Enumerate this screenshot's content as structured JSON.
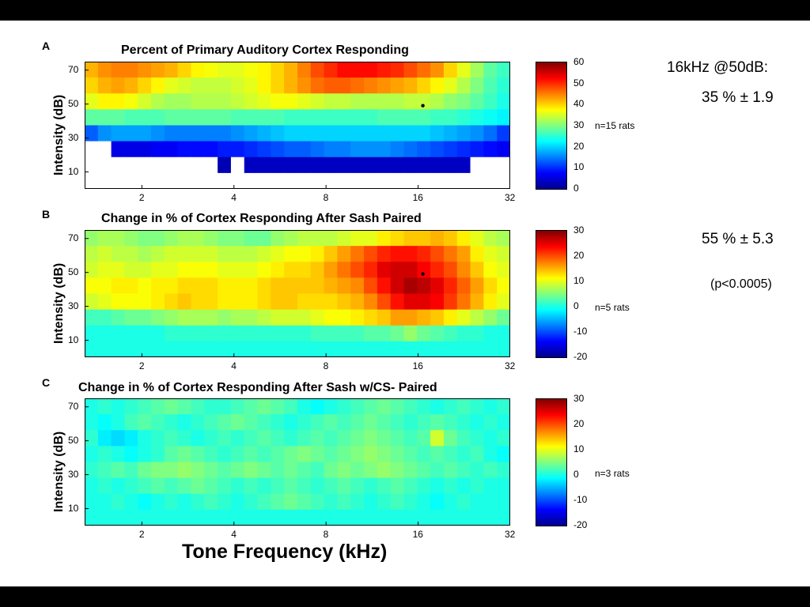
{
  "chart_data": [
    {
      "type": "heatmap",
      "panel": "A",
      "title": "Percent of Primary Auditory Cortex Responding",
      "ylabel": "Intensity (dB)",
      "xlabel": "Tone Frequency (kHz)",
      "x_ticks": [
        "2",
        "4",
        "8",
        "16",
        "32"
      ],
      "y_ticks": [
        "70",
        "50",
        "30",
        "10"
      ],
      "x_range_khz": [
        1.3,
        32
      ],
      "y_range_db": [
        0,
        75
      ],
      "colorbar_ticks": [
        "60",
        "50",
        "40",
        "30",
        "20",
        "10",
        "0"
      ],
      "color_range": [
        0,
        60
      ],
      "n_label": "n=15 rats",
      "rows_db": [
        70,
        60,
        50,
        40,
        30,
        20,
        10,
        0
      ],
      "rows": [
        {
          "db": 70,
          "values": [
            42,
            44,
            45,
            45,
            44,
            43,
            42,
            40,
            38,
            37,
            36,
            36,
            37,
            38,
            40,
            42,
            45,
            48,
            50,
            52,
            52,
            52,
            51,
            50,
            48,
            46,
            44,
            40,
            36,
            32,
            28,
            26
          ]
        },
        {
          "db": 60,
          "values": [
            40,
            42,
            43,
            42,
            40,
            38,
            36,
            35,
            34,
            34,
            34,
            35,
            36,
            38,
            40,
            42,
            44,
            46,
            47,
            47,
            46,
            45,
            44,
            43,
            42,
            40,
            38,
            36,
            33,
            30,
            27,
            25
          ]
        },
        {
          "db": 50,
          "values": [
            36,
            38,
            38,
            37,
            35,
            33,
            32,
            32,
            33,
            33,
            33,
            34,
            35,
            36,
            37,
            37,
            36,
            35,
            34,
            34,
            33,
            33,
            33,
            33,
            34,
            34,
            33,
            31,
            30,
            28,
            26,
            24
          ]
        },
        {
          "db": 40,
          "values": [
            28,
            28,
            28,
            27,
            27,
            27,
            28,
            28,
            28,
            28,
            28,
            27,
            27,
            27,
            27,
            26,
            26,
            26,
            26,
            26,
            26,
            26,
            27,
            27,
            27,
            27,
            26,
            26,
            25,
            24,
            23,
            22
          ]
        },
        {
          "db": 30,
          "values": [
            13,
            16,
            17,
            17,
            17,
            16,
            15,
            15,
            15,
            15,
            15,
            16,
            17,
            18,
            19,
            20,
            20,
            20,
            20,
            20,
            20,
            20,
            20,
            20,
            20,
            20,
            19,
            18,
            17,
            16,
            14,
            11
          ]
        },
        {
          "db": 20,
          "values": [
            null,
            null,
            6,
            6,
            6,
            7,
            7,
            8,
            8,
            8,
            9,
            9,
            10,
            11,
            12,
            13,
            13,
            14,
            15,
            15,
            16,
            16,
            16,
            15,
            14,
            13,
            12,
            11,
            10,
            9,
            8,
            7
          ]
        },
        {
          "db": 10,
          "values": [
            null,
            null,
            null,
            null,
            null,
            null,
            null,
            null,
            null,
            null,
            3,
            null,
            4,
            4,
            4,
            4,
            4,
            4,
            4,
            4,
            4,
            4,
            4,
            4,
            4,
            4,
            4,
            4,
            4,
            null,
            null,
            null
          ]
        },
        {
          "db": 0,
          "values": [
            null,
            null,
            null,
            null,
            null,
            null,
            null,
            null,
            null,
            null,
            null,
            null,
            null,
            null,
            null,
            null,
            null,
            null,
            null,
            null,
            null,
            null,
            null,
            null,
            null,
            null,
            null,
            null,
            null,
            null,
            null,
            null
          ]
        }
      ],
      "marker": {
        "khz": 16,
        "db": 50
      }
    },
    {
      "type": "heatmap",
      "panel": "B",
      "title": "Change in % of Cortex Responding After Sash Paired",
      "ylabel": "Intensity (dB)",
      "x_ticks": [
        "2",
        "4",
        "8",
        "16",
        "32"
      ],
      "y_ticks": [
        "70",
        "50",
        "30",
        "10"
      ],
      "x_range_khz": [
        1.3,
        32
      ],
      "y_range_db": [
        0,
        75
      ],
      "colorbar_ticks": [
        "30",
        "20",
        "10",
        "0",
        "-10",
        "-20"
      ],
      "color_range": [
        -20,
        30
      ],
      "n_label": "n=5 rats",
      "rows_db": [
        70,
        60,
        50,
        40,
        30,
        20,
        10,
        0
      ],
      "rows": [
        {
          "db": 70,
          "values": [
            6,
            7,
            7,
            6,
            5,
            5,
            6,
            7,
            7,
            6,
            5,
            5,
            4,
            4,
            6,
            7,
            8,
            8,
            8,
            9,
            10,
            10,
            12,
            13,
            14,
            14,
            15,
            14,
            12,
            10,
            8,
            7
          ]
        },
        {
          "db": 60,
          "values": [
            8,
            9,
            8,
            8,
            7,
            8,
            9,
            9,
            9,
            9,
            8,
            8,
            8,
            9,
            10,
            11,
            11,
            12,
            14,
            16,
            18,
            20,
            22,
            23,
            23,
            22,
            20,
            18,
            16,
            12,
            10,
            9
          ]
        },
        {
          "db": 50,
          "values": [
            9,
            10,
            10,
            9,
            9,
            10,
            10,
            11,
            11,
            11,
            10,
            10,
            10,
            11,
            12,
            13,
            13,
            14,
            16,
            18,
            20,
            22,
            25,
            26,
            26,
            24,
            22,
            20,
            17,
            14,
            11,
            10
          ]
        },
        {
          "db": 40,
          "values": [
            11,
            11,
            12,
            12,
            11,
            12,
            12,
            13,
            13,
            13,
            12,
            12,
            12,
            13,
            14,
            14,
            14,
            14,
            15,
            16,
            17,
            20,
            23,
            26,
            28,
            27,
            25,
            22,
            19,
            16,
            13,
            11
          ]
        },
        {
          "db": 30,
          "values": [
            9,
            10,
            11,
            11,
            11,
            12,
            13,
            14,
            13,
            13,
            12,
            12,
            12,
            13,
            14,
            14,
            13,
            13,
            13,
            14,
            15,
            17,
            20,
            23,
            25,
            25,
            24,
            21,
            18,
            15,
            12,
            10
          ]
        },
        {
          "db": 20,
          "values": [
            2,
            2,
            3,
            4,
            4,
            5,
            6,
            7,
            7,
            7,
            6,
            7,
            7,
            8,
            9,
            9,
            9,
            10,
            11,
            11,
            12,
            13,
            14,
            16,
            16,
            15,
            14,
            12,
            10,
            8,
            6,
            4
          ]
        },
        {
          "db": 10,
          "values": [
            0,
            0,
            0,
            0,
            0,
            0,
            1,
            1,
            1,
            1,
            1,
            1,
            1,
            1,
            1,
            1,
            1,
            2,
            2,
            2,
            2,
            3,
            3,
            4,
            6,
            4,
            3,
            2,
            1,
            1,
            0,
            0
          ]
        },
        {
          "db": 0,
          "values": [
            0,
            0,
            0,
            0,
            0,
            0,
            0,
            0,
            0,
            0,
            0,
            0,
            0,
            0,
            0,
            0,
            0,
            0,
            0,
            0,
            0,
            0,
            0,
            0,
            0,
            0,
            0,
            0,
            0,
            0,
            0,
            0
          ]
        }
      ],
      "marker": {
        "khz": 16,
        "db": 50
      }
    },
    {
      "type": "heatmap",
      "panel": "C",
      "title": "Change in % of Cortex Responding After Sash w/CS- Paired",
      "ylabel": "Intensity (dB)",
      "x_ticks": [
        "2",
        "4",
        "8",
        "16",
        "32"
      ],
      "y_ticks": [
        "70",
        "50",
        "30",
        "10"
      ],
      "x_range_khz": [
        1.3,
        32
      ],
      "y_range_db": [
        0,
        75
      ],
      "colorbar_ticks": [
        "30",
        "20",
        "10",
        "0",
        "-10",
        "-20"
      ],
      "color_range": [
        -20,
        30
      ],
      "n_label": "n=3 rats",
      "rows_db": [
        70,
        60,
        50,
        40,
        30,
        20,
        10,
        0
      ],
      "rows": [
        {
          "db": 70,
          "values": [
            0,
            1,
            0,
            1,
            2,
            3,
            4,
            3,
            2,
            1,
            1,
            2,
            3,
            4,
            3,
            2,
            0,
            -1,
            0,
            1,
            2,
            3,
            4,
            3,
            2,
            1,
            0,
            1,
            2,
            1,
            0,
            1
          ]
        },
        {
          "db": 60,
          "values": [
            0,
            -1,
            0,
            2,
            3,
            2,
            1,
            0,
            1,
            2,
            3,
            4,
            3,
            2,
            1,
            0,
            1,
            2,
            3,
            2,
            3,
            4,
            3,
            2,
            1,
            2,
            3,
            2,
            1,
            0,
            1,
            0
          ]
        },
        {
          "db": 50,
          "values": [
            1,
            -2,
            -3,
            -2,
            0,
            1,
            2,
            1,
            0,
            1,
            2,
            1,
            2,
            3,
            2,
            1,
            2,
            3,
            2,
            3,
            4,
            5,
            4,
            3,
            2,
            3,
            9,
            4,
            2,
            1,
            0,
            1
          ]
        },
        {
          "db": 40,
          "values": [
            0,
            1,
            0,
            -1,
            0,
            1,
            3,
            4,
            3,
            2,
            1,
            2,
            3,
            2,
            3,
            4,
            5,
            4,
            3,
            4,
            5,
            6,
            5,
            4,
            3,
            2,
            3,
            2,
            1,
            2,
            0,
            -1
          ]
        },
        {
          "db": 30,
          "values": [
            1,
            2,
            3,
            2,
            4,
            5,
            5,
            6,
            5,
            4,
            3,
            4,
            5,
            4,
            3,
            4,
            3,
            2,
            4,
            5,
            4,
            5,
            6,
            5,
            4,
            3,
            2,
            3,
            2,
            1,
            2,
            1
          ]
        },
        {
          "db": 20,
          "values": [
            0,
            1,
            0,
            1,
            2,
            3,
            2,
            3,
            4,
            3,
            2,
            1,
            2,
            1,
            2,
            3,
            2,
            1,
            2,
            3,
            2,
            1,
            2,
            3,
            2,
            1,
            0,
            1,
            0,
            1,
            0,
            0
          ]
        },
        {
          "db": 10,
          "values": [
            0,
            0,
            1,
            0,
            -1,
            0,
            1,
            0,
            1,
            2,
            1,
            0,
            1,
            2,
            3,
            4,
            3,
            2,
            1,
            2,
            1,
            0,
            1,
            2,
            1,
            0,
            -1,
            0,
            1,
            0,
            0,
            0
          ]
        },
        {
          "db": 0,
          "values": [
            0,
            0,
            0,
            0,
            0,
            0,
            0,
            0,
            0,
            0,
            0,
            0,
            0,
            0,
            0,
            0,
            0,
            0,
            0,
            0,
            0,
            0,
            0,
            0,
            0,
            0,
            0,
            0,
            0,
            0,
            0,
            0
          ]
        }
      ]
    }
  ],
  "xlabel": "Tone Frequency (kHz)",
  "ylabel": "Intensity (dB)",
  "panels": {
    "a": "A",
    "b": "B",
    "c": "C"
  },
  "stats": {
    "line1": "16kHz @50dB:",
    "line2": "35 % ± 1.9",
    "line3": "55 % ± 5.3",
    "line4": "(p<0.0005)"
  }
}
